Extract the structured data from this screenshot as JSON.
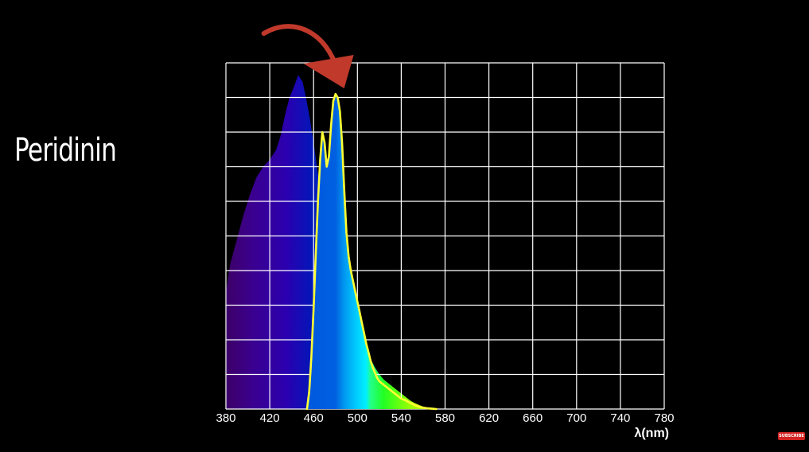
{
  "title": "Peridinin",
  "subscribe_badge": "SUBSCRIBE",
  "chart_data": {
    "type": "area",
    "title": "Peridinin",
    "xlabel": "λ(nm)",
    "ylabel": "",
    "xlim": [
      380,
      780
    ],
    "ylim": [
      0,
      1
    ],
    "x_ticks": [
      380,
      420,
      460,
      500,
      540,
      580,
      620,
      660,
      700,
      740,
      780
    ],
    "grid": true,
    "series": [
      {
        "fill": "spectrum",
        "x": [
          380,
          384,
          390,
          396,
          402,
          408,
          414,
          420,
          426,
          430,
          434,
          438,
          442,
          446,
          450,
          453,
          456,
          460,
          464,
          468,
          472,
          476,
          480,
          484,
          488,
          492,
          496,
          500,
          504,
          508,
          512,
          516,
          520,
          524,
          528,
          532,
          536,
          540,
          544,
          548,
          552,
          556,
          560,
          564,
          568,
          572
        ],
        "y": [
          0.34,
          0.42,
          0.49,
          0.56,
          0.62,
          0.67,
          0.7,
          0.72,
          0.75,
          0.79,
          0.85,
          0.9,
          0.93,
          0.965,
          0.945,
          0.9,
          0.85,
          0.77,
          0.68,
          0.62,
          0.55,
          0.48,
          0.42,
          0.375,
          0.35,
          0.33,
          0.3,
          0.26,
          0.22,
          0.18,
          0.145,
          0.12,
          0.1,
          0.085,
          0.075,
          0.065,
          0.055,
          0.045,
          0.035,
          0.025,
          0.018,
          0.012,
          0.007,
          0.004,
          0.002,
          0.0
        ]
      },
      {
        "stroke": "#ffff33",
        "x": [
          454,
          456,
          458,
          460,
          462,
          464,
          466,
          468,
          470,
          472,
          474,
          476,
          478,
          480,
          482,
          484,
          486,
          488,
          490,
          492,
          494,
          496,
          498,
          500,
          502,
          504,
          506,
          508,
          510,
          512,
          514,
          516,
          518,
          520,
          524,
          528,
          532,
          536,
          540,
          544,
          548,
          552,
          556,
          560,
          564,
          568,
          572
        ],
        "y": [
          0.0,
          0.05,
          0.15,
          0.29,
          0.45,
          0.6,
          0.72,
          0.8,
          0.77,
          0.7,
          0.73,
          0.82,
          0.89,
          0.91,
          0.9,
          0.86,
          0.77,
          0.63,
          0.51,
          0.44,
          0.4,
          0.37,
          0.34,
          0.31,
          0.28,
          0.25,
          0.22,
          0.19,
          0.165,
          0.14,
          0.12,
          0.105,
          0.09,
          0.08,
          0.07,
          0.06,
          0.05,
          0.04,
          0.03,
          0.025,
          0.018,
          0.012,
          0.007,
          0.004,
          0.002,
          0.001,
          0.0
        ]
      }
    ],
    "annotation": {
      "type": "arrow",
      "points_to_x": 485,
      "color": "#c0392b"
    },
    "colors": {
      "grid": "#ffffff",
      "background": "#000000",
      "highlight_curve": "#ffff33",
      "arrow": "#c0392b"
    }
  }
}
